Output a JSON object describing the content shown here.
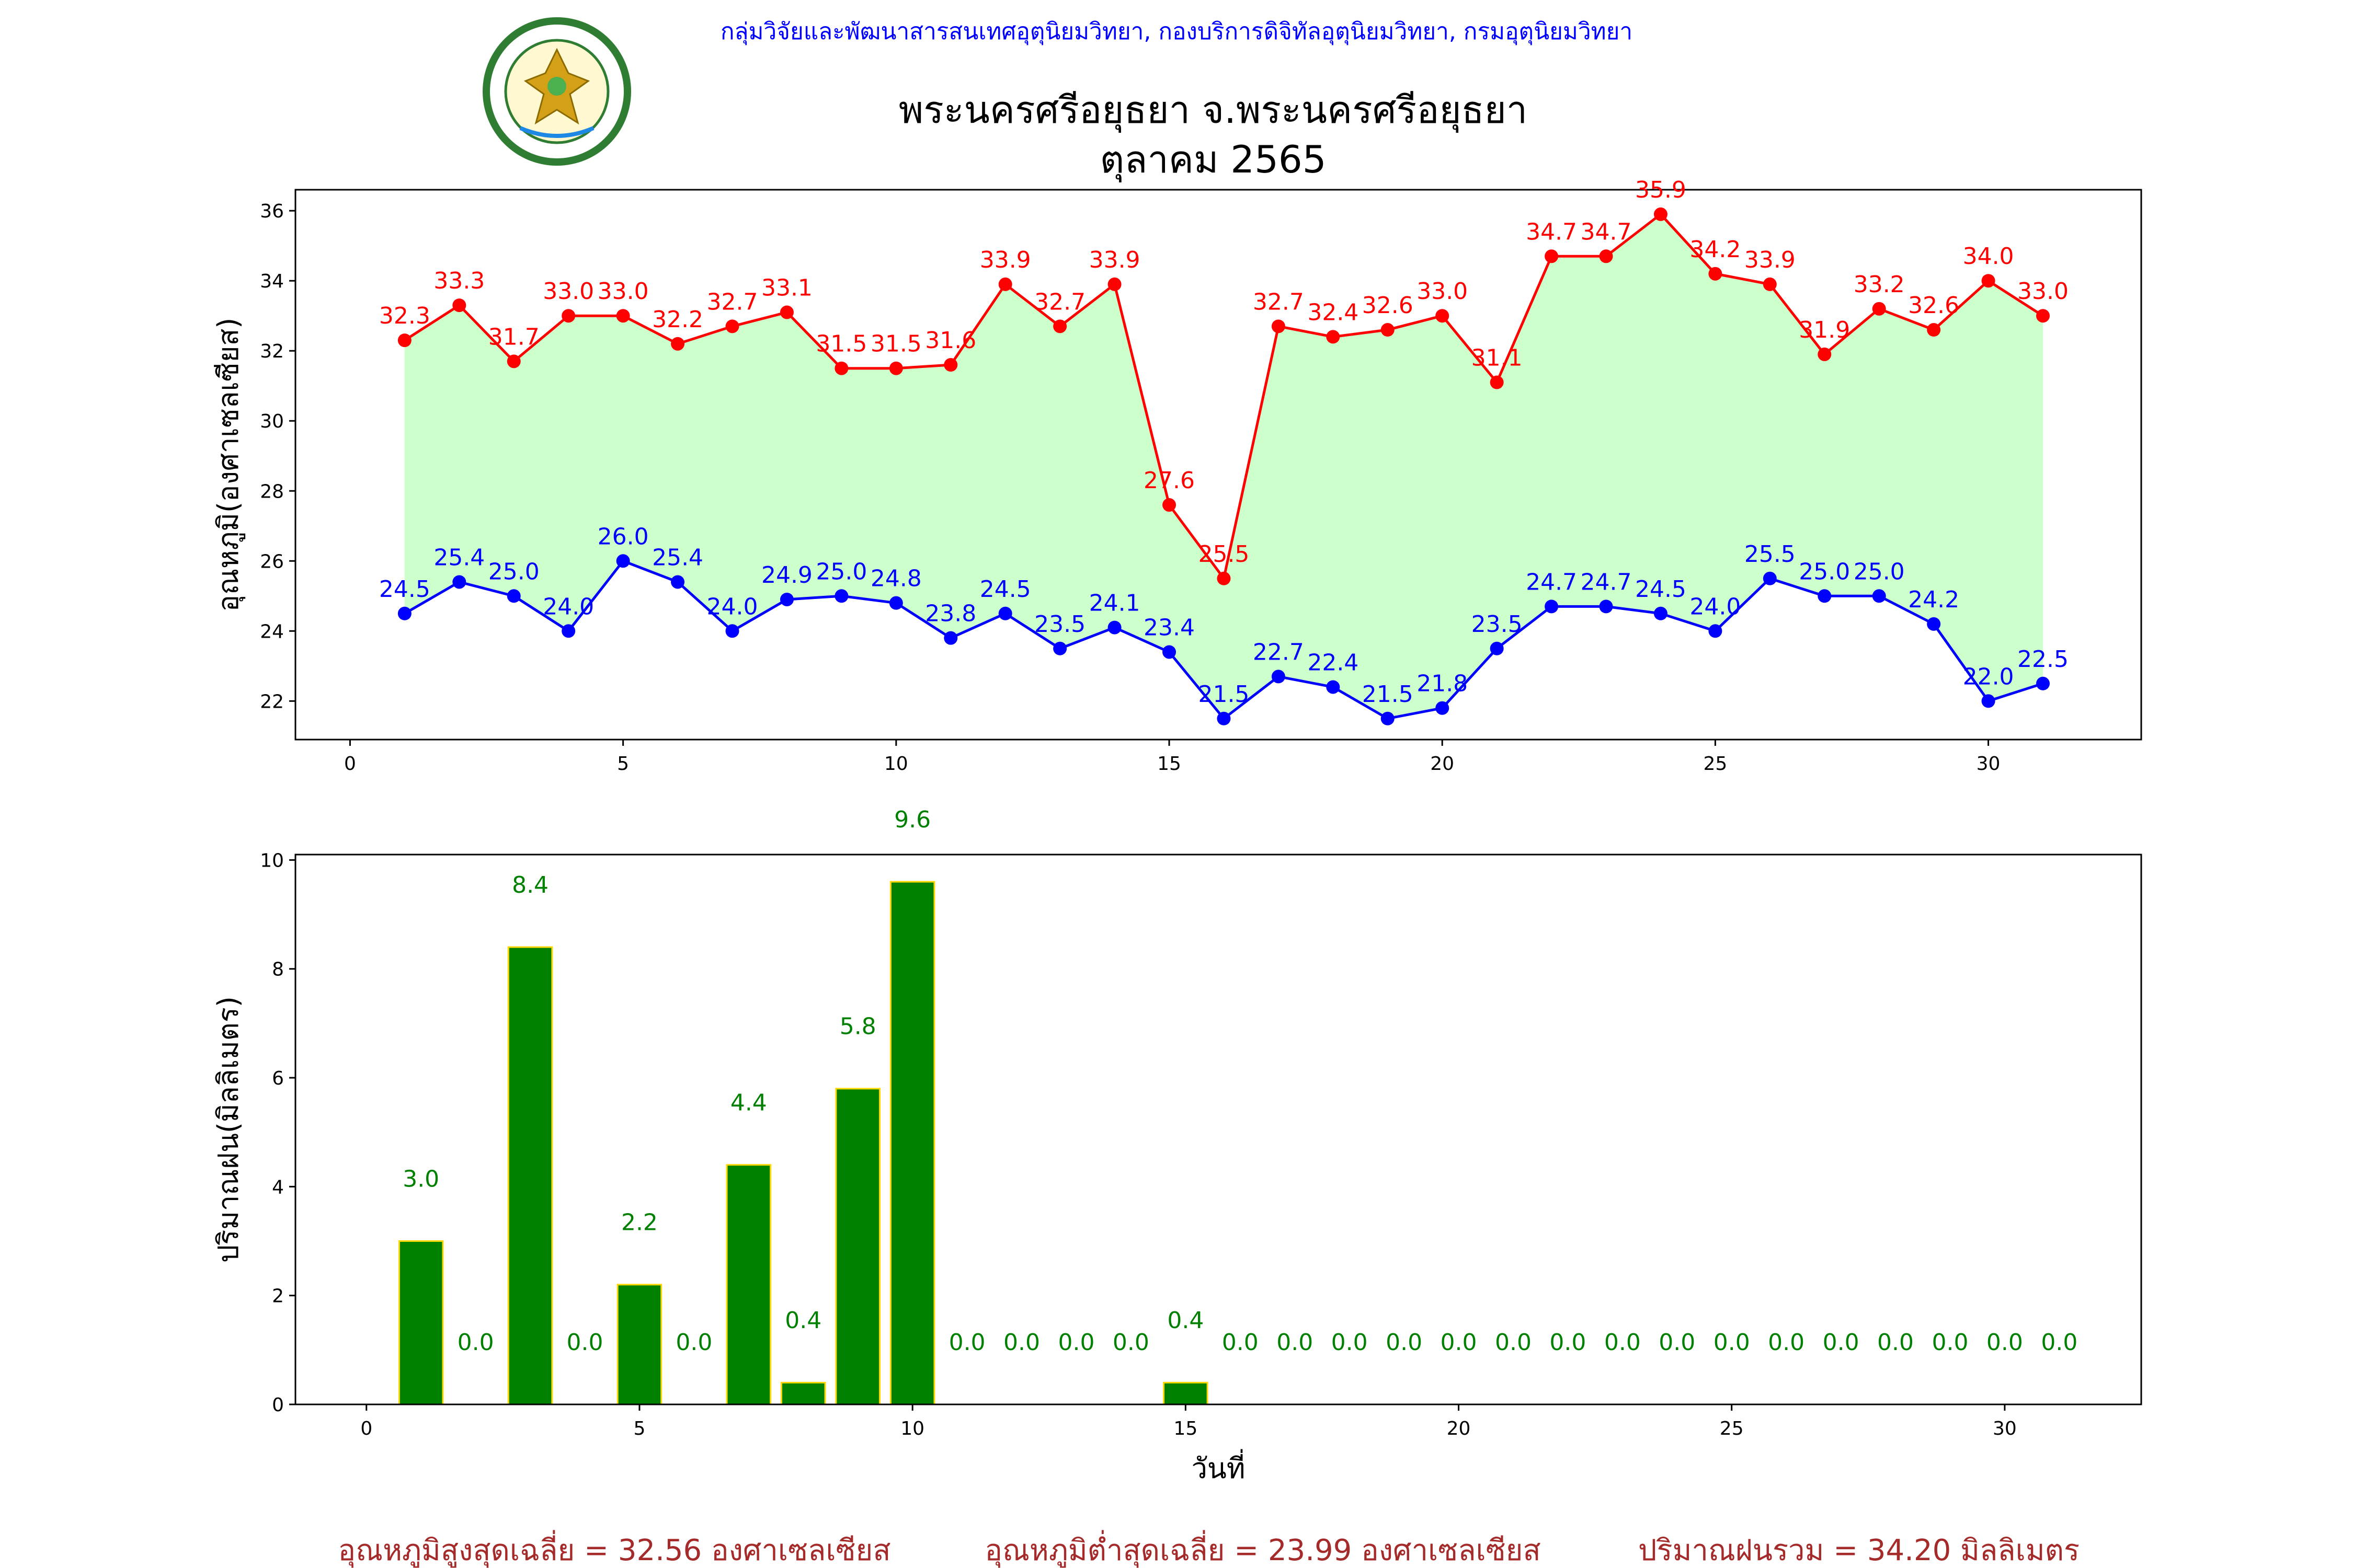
{
  "header": {
    "agency": "กลุ่มวิจัยและพัฒนาสารสนเทศอุตุนิยมวิทยา, กองบริการดิจิทัลอุตุนิยมวิทยา, กรมอุตุนิยมวิทยา",
    "title_line1": "พระนครศรีอยุธยา จ.พระนครศรีอยุธยา",
    "title_line2": "ตุลาคม 2565",
    "logo_icon": "meteorological-department-seal-icon"
  },
  "chart_data": [
    {
      "type": "line",
      "ylabel": "อุณหภูมิ(องศาเซลเซียส)",
      "xlim": [
        -1,
        32.8
      ],
      "ylim": [
        20.9,
        36.6
      ],
      "xticks": [
        0,
        5,
        10,
        15,
        20,
        25,
        30
      ],
      "yticks": [
        22,
        24,
        26,
        28,
        30,
        32,
        34,
        36
      ],
      "x": [
        1,
        2,
        3,
        4,
        5,
        6,
        7,
        8,
        9,
        10,
        11,
        12,
        13,
        14,
        15,
        16,
        17,
        18,
        19,
        20,
        21,
        22,
        23,
        24,
        25,
        26,
        27,
        28,
        29,
        30,
        31
      ],
      "fill_between": {
        "color": "#ccffcc"
      },
      "series": [
        {
          "color": "#ff0000",
          "values": [
            32.3,
            33.3,
            31.7,
            33.0,
            33.0,
            32.2,
            32.7,
            33.1,
            31.5,
            31.5,
            31.6,
            33.9,
            32.7,
            33.9,
            27.6,
            25.5,
            32.7,
            32.4,
            32.6,
            33.0,
            31.1,
            34.7,
            34.7,
            35.9,
            34.2,
            33.9,
            31.9,
            33.2,
            32.6,
            34.0,
            33.0
          ],
          "labels": [
            "32.3",
            "33.3",
            "31.7",
            "33.0",
            "33.0",
            "32.2",
            "32.7",
            "33.1",
            "31.5",
            "31.5",
            "31.6",
            "33.9",
            "32.7",
            "33.9",
            "27.6",
            "25.5",
            "32.7",
            "32.4",
            "32.6",
            "33.0",
            "31.1",
            "34.7",
            "34.7",
            "35.9",
            "34.2",
            "33.9",
            "31.9",
            "33.2",
            "32.6",
            "34.0",
            "33.0"
          ]
        },
        {
          "color": "#0000ff",
          "values": [
            24.5,
            25.4,
            25.0,
            24.0,
            26.0,
            25.4,
            24.0,
            24.9,
            25.0,
            24.8,
            23.8,
            24.5,
            23.5,
            24.1,
            23.4,
            21.5,
            22.7,
            22.4,
            21.5,
            21.8,
            23.5,
            24.7,
            24.7,
            24.5,
            24.0,
            25.5,
            25.0,
            25.0,
            24.2,
            22.0,
            22.5
          ],
          "labels": [
            "24.5",
            "25.4",
            "25.0",
            "24.0",
            "26.0",
            "25.4",
            "24.0",
            "24.9",
            "25.0",
            "24.8",
            "23.8",
            "24.5",
            "23.5",
            "24.1",
            "23.4",
            "21.5",
            "22.7",
            "22.4",
            "21.5",
            "21.8",
            "23.5",
            "24.7",
            "24.7",
            "24.5",
            "24.0",
            "25.5",
            "25.0",
            "25.0",
            "24.2",
            "22.0",
            "22.5"
          ]
        }
      ]
    },
    {
      "type": "bar",
      "xlabel": "วันที่",
      "ylabel": "ปริมาณฝน(มิลลิเมตร)",
      "xlim": [
        -1.3,
        32.5
      ],
      "ylim": [
        0,
        10.1
      ],
      "xticks": [
        0,
        5,
        10,
        15,
        20,
        25,
        30
      ],
      "yticks": [
        0,
        2,
        4,
        6,
        8,
        10
      ],
      "bar_color": "#008000",
      "edge_color": "#ffd700",
      "label_color": "#008000",
      "x": [
        1,
        2,
        3,
        4,
        5,
        6,
        7,
        8,
        9,
        10,
        11,
        12,
        13,
        14,
        15,
        16,
        17,
        18,
        19,
        20,
        21,
        22,
        23,
        24,
        25,
        26,
        27,
        28,
        29,
        30,
        31
      ],
      "values": [
        3.0,
        0.0,
        8.4,
        0.0,
        2.2,
        0.0,
        4.4,
        0.4,
        5.8,
        9.6,
        0.0,
        0.0,
        0.0,
        0.0,
        0.4,
        0.0,
        0.0,
        0.0,
        0.0,
        0.0,
        0.0,
        0.0,
        0.0,
        0.0,
        0.0,
        0.0,
        0.0,
        0.0,
        0.0,
        0.0,
        0.0
      ],
      "labels": [
        "3.0",
        "0.0",
        "8.4",
        "0.0",
        "2.2",
        "0.0",
        "4.4",
        "0.4",
        "5.8",
        "9.6",
        "0.0",
        "0.0",
        "0.0",
        "0.0",
        "0.4",
        "0.0",
        "0.0",
        "0.0",
        "0.0",
        "0.0",
        "0.0",
        "0.0",
        "0.0",
        "0.0",
        "0.0",
        "0.0",
        "0.0",
        "0.0",
        "0.0",
        "0.0",
        "0.0"
      ]
    }
  ],
  "summary": {
    "color": "#a52a2a",
    "avg_max": "อุณหภูมิสูงสุดเฉลี่ย = 32.56 องศาเซลเซียส",
    "avg_min": "อุณหภูมิต่ำสุดเฉลี่ย = 23.99 องศาเซลเซียส",
    "total_rain": "ปริมาณฝนรวม = 34.20 มิลลิเมตร"
  }
}
